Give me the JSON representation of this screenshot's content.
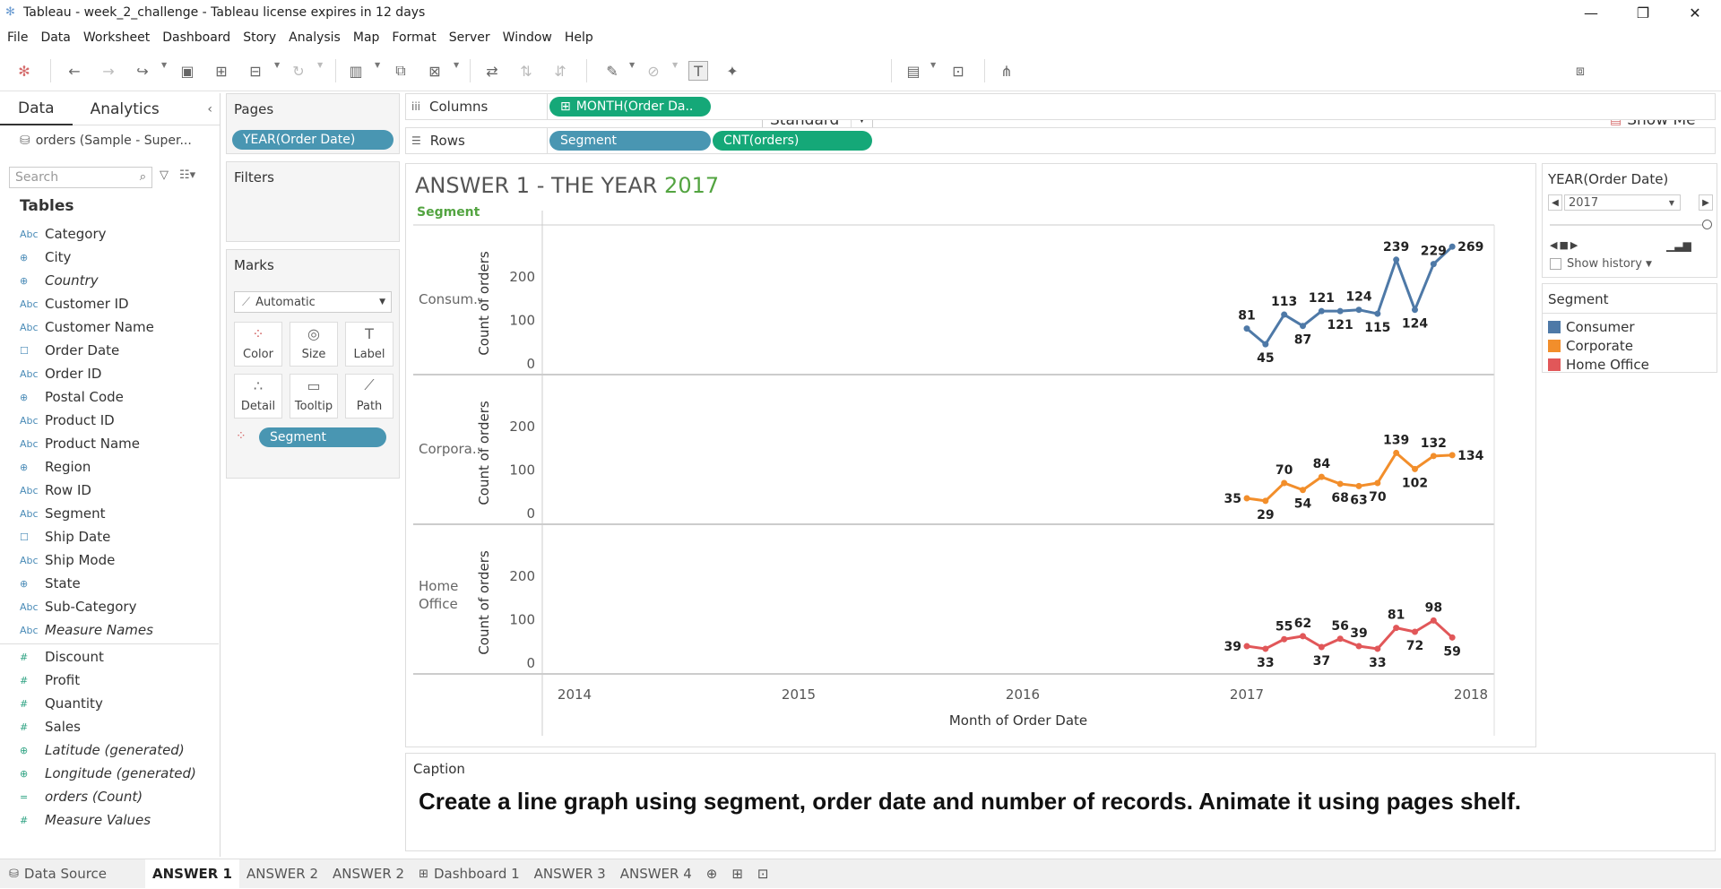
{
  "window": {
    "title": "Tableau - week_2_challenge - Tableau license expires in 12 days",
    "controls": [
      "—",
      "❐",
      "✕"
    ]
  },
  "menu": [
    "File",
    "Data",
    "Worksheet",
    "Dashboard",
    "Story",
    "Analysis",
    "Map",
    "Format",
    "Server",
    "Window",
    "Help"
  ],
  "toolbar": {
    "fit_select": "Standard",
    "show_me": "Show Me"
  },
  "left_pane": {
    "tabs": [
      "Data",
      "Analytics"
    ],
    "data_source": "orders (Sample - Super...",
    "search_placeholder": "Search",
    "tables_heading": "Tables",
    "dimensions": [
      {
        "type": "Abc",
        "name": "Category"
      },
      {
        "type": "⊕",
        "name": "City"
      },
      {
        "type": "⊕",
        "name": "Country"
      },
      {
        "type": "Abc",
        "name": "Customer ID"
      },
      {
        "type": "Abc",
        "name": "Customer Name"
      },
      {
        "type": "☐",
        "name": "Order Date"
      },
      {
        "type": "Abc",
        "name": "Order ID"
      },
      {
        "type": "⊕",
        "name": "Postal Code"
      },
      {
        "type": "Abc",
        "name": "Product ID"
      },
      {
        "type": "Abc",
        "name": "Product Name"
      },
      {
        "type": "⊕",
        "name": "Region"
      },
      {
        "type": "Abc",
        "name": "Row ID"
      },
      {
        "type": "Abc",
        "name": "Segment"
      },
      {
        "type": "☐",
        "name": "Ship Date"
      },
      {
        "type": "Abc",
        "name": "Ship Mode"
      },
      {
        "type": "⊕",
        "name": "State"
      },
      {
        "type": "Abc",
        "name": "Sub-Category"
      },
      {
        "type": "Abc",
        "name": "Measure Names"
      }
    ],
    "measures": [
      {
        "type": "#",
        "name": "Discount"
      },
      {
        "type": "#",
        "name": "Profit"
      },
      {
        "type": "#",
        "name": "Quantity"
      },
      {
        "type": "#",
        "name": "Sales"
      },
      {
        "type": "⊕",
        "name": "Latitude (generated)"
      },
      {
        "type": "⊕",
        "name": "Longitude (generated)"
      },
      {
        "type": "=",
        "name": "orders (Count)"
      },
      {
        "type": "#",
        "name": "Measure Values"
      }
    ]
  },
  "pages": {
    "heading": "Pages",
    "pill": "YEAR(Order Date)"
  },
  "filters": {
    "heading": "Filters"
  },
  "marks": {
    "heading": "Marks",
    "type": "Automatic",
    "buttons": [
      "Color",
      "Size",
      "Label",
      "Detail",
      "Tooltip",
      "Path"
    ],
    "pill": "Segment"
  },
  "shelves": {
    "columns_label": "Columns",
    "columns_pill": "MONTH(Order Da..",
    "rows_label": "Rows",
    "rows_pills": [
      "Segment",
      "CNT(orders)"
    ]
  },
  "caption": {
    "heading": "Caption",
    "text": "Create a line graph using segment, order date and number of records. Animate it using pages shelf."
  },
  "page_control": {
    "title": "YEAR(Order Date)",
    "value": "2017",
    "show_history": "Show history"
  },
  "legend": {
    "title": "Segment",
    "items": [
      {
        "name": "Consumer",
        "color": "#4e79a7"
      },
      {
        "name": "Corporate",
        "color": "#f28e2b"
      },
      {
        "name": "Home Office",
        "color": "#e15759"
      }
    ]
  },
  "bottom_tabs": [
    "Data Source",
    "ANSWER 1",
    "ANSWER 2",
    "ANSWER 2",
    "Dashboard 1",
    "ANSWER 3",
    "ANSWER 4"
  ],
  "chart_data": {
    "type": "line",
    "title_prefix": "ANSWER 1 -  THE YEAR ",
    "title_year": "2017",
    "header": "Segment",
    "xlabel": "Month of Order Date",
    "ylabel": "Count of orders",
    "x_ticks": [
      "2014",
      "2015",
      "2016",
      "2017",
      "2018"
    ],
    "y_ticks": [
      0,
      100,
      200
    ],
    "ylim": [
      0,
      290
    ],
    "months": [
      "2017-01",
      "2017-02",
      "2017-03",
      "2017-04",
      "2017-05",
      "2017-06",
      "2017-07",
      "2017-08",
      "2017-09",
      "2017-10",
      "2017-11",
      "2017-12"
    ],
    "series": [
      {
        "name": "Consumer",
        "row_label": "Consum..",
        "color": "#4e79a7",
        "values": [
          81,
          45,
          113,
          87,
          121,
          121,
          124,
          115,
          239,
          124,
          229,
          269
        ]
      },
      {
        "name": "Corporate",
        "row_label": "Corpora..",
        "color": "#f28e2b",
        "values": [
          35,
          29,
          70,
          54,
          84,
          68,
          63,
          70,
          139,
          102,
          132,
          134
        ]
      },
      {
        "name": "Home Office",
        "row_label": "Home Office",
        "color": "#e15759",
        "values": [
          39,
          33,
          55,
          62,
          37,
          56,
          39,
          33,
          81,
          72,
          98,
          59
        ]
      }
    ]
  }
}
